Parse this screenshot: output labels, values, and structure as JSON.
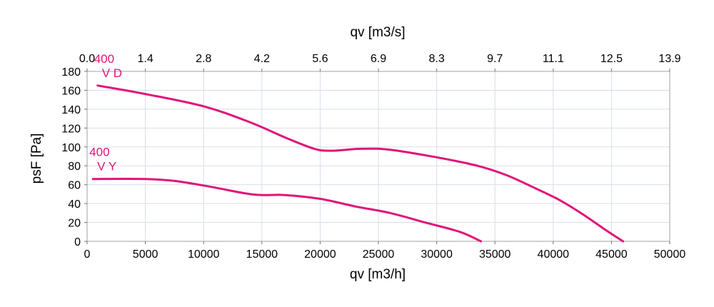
{
  "chart_data": {
    "type": "line",
    "title": "",
    "xlabel": "qv [m3/h]",
    "x2label": "qv [m3/s]",
    "ylabel": "psF [Pa]",
    "xlim": [
      0,
      50000
    ],
    "ylim": [
      0,
      180
    ],
    "grid": true,
    "x_ticks": [
      "0",
      "5000",
      "10000",
      "15000",
      "20000",
      "25000",
      "30000",
      "35000",
      "40000",
      "45000",
      "50000"
    ],
    "x2_ticks": [
      "0.0",
      "1.4",
      "2.8",
      "4.2",
      "5.6",
      "6.9",
      "8.3",
      "9.7",
      "11.1",
      "12.5",
      "13.9"
    ],
    "y_ticks": [
      "0",
      "20",
      "40",
      "60",
      "80",
      "100",
      "120",
      "140",
      "160",
      "180"
    ],
    "line_color": "#e0147a",
    "series": [
      {
        "label_line1": "400",
        "label_line2": "V D",
        "points": [
          [
            900,
            165
          ],
          [
            5000,
            156
          ],
          [
            10000,
            143
          ],
          [
            14000,
            126
          ],
          [
            17000,
            110
          ],
          [
            19500,
            98
          ],
          [
            21000,
            96
          ],
          [
            23500,
            98
          ],
          [
            26000,
            97
          ],
          [
            30000,
            89
          ],
          [
            33500,
            80
          ],
          [
            36000,
            70
          ],
          [
            38500,
            56
          ],
          [
            40500,
            44
          ],
          [
            42500,
            29
          ],
          [
            44500,
            12
          ],
          [
            46000,
            0
          ]
        ]
      },
      {
        "label_line1": "400",
        "label_line2": "V Y",
        "points": [
          [
            500,
            66
          ],
          [
            5000,
            66
          ],
          [
            7500,
            64
          ],
          [
            10500,
            58
          ],
          [
            13500,
            51
          ],
          [
            15000,
            49
          ],
          [
            17000,
            49
          ],
          [
            20000,
            45
          ],
          [
            23000,
            37
          ],
          [
            26000,
            30
          ],
          [
            29000,
            20
          ],
          [
            32000,
            10
          ],
          [
            33800,
            0
          ]
        ]
      }
    ]
  }
}
